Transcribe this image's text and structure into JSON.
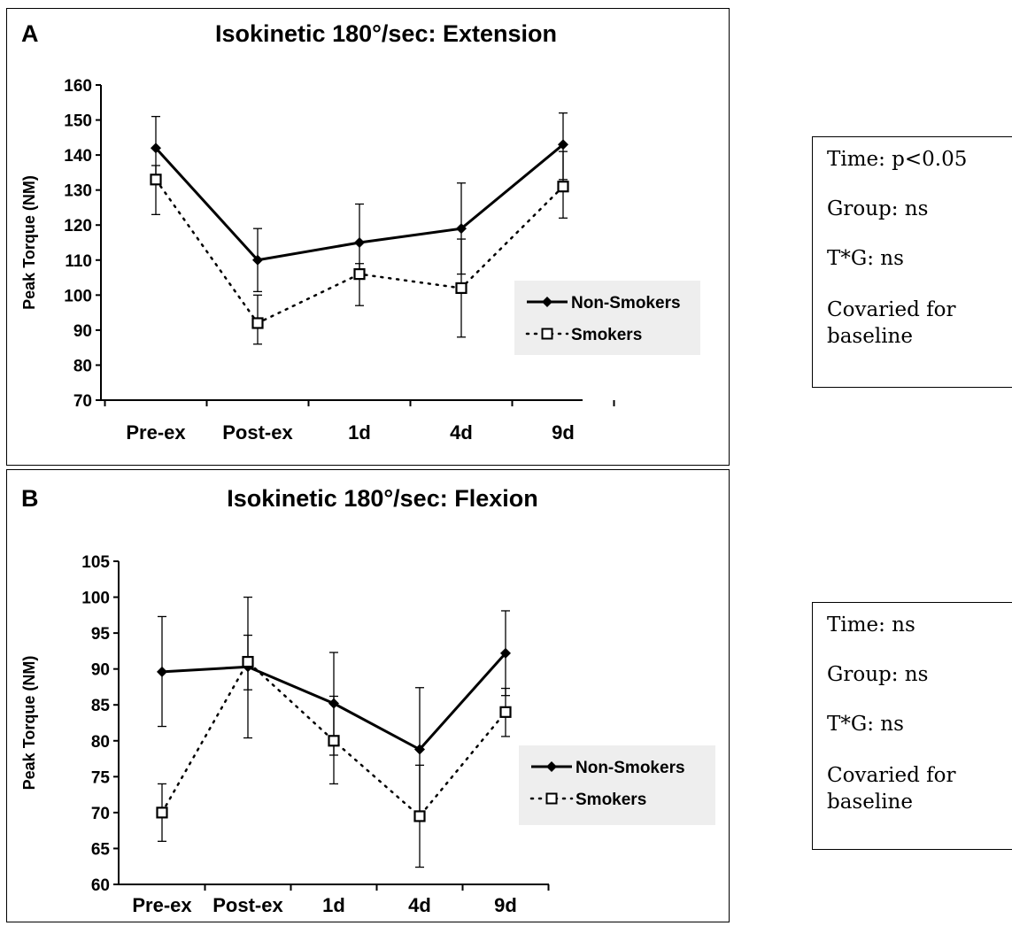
{
  "colors": {
    "axis": "#000000",
    "legend_bg": "#eeeeee",
    "background": "#ffffff"
  },
  "chart_data": [
    {
      "type": "line",
      "panel_label": "A",
      "title": "Isokinetic 180°/sec: Extension",
      "ylabel": "Peak Torque (NM)",
      "xlabel": "",
      "categories": [
        "Pre-ex",
        "Post-ex",
        "1d",
        "4d",
        "9d"
      ],
      "ylim": [
        70,
        160
      ],
      "yticks": [
        70,
        80,
        90,
        100,
        110,
        120,
        130,
        140,
        150,
        160
      ],
      "legend_position": "right",
      "grid": false,
      "series": [
        {
          "name": "Non-Smokers",
          "style": "solid",
          "marker": "filled-diamond",
          "values": [
            142,
            110,
            115,
            119,
            143
          ],
          "err_lower": [
            133,
            101,
            106,
            106,
            133
          ],
          "err_upper": [
            151,
            119,
            126,
            132,
            152
          ]
        },
        {
          "name": "Smokers",
          "style": "dotted",
          "marker": "open-square",
          "values": [
            133,
            92,
            106,
            102,
            131
          ],
          "err_lower": [
            123,
            86,
            97,
            88,
            122
          ],
          "err_upper": [
            137,
            100,
            109,
            116,
            141
          ]
        }
      ],
      "stats": [
        "Time: p<0.05",
        "Group: ns",
        "T*G: ns",
        "Covaried for baseline"
      ]
    },
    {
      "type": "line",
      "panel_label": "B",
      "title": "Isokinetic 180°/sec: Flexion",
      "ylabel": "Peak Torque (NM)",
      "xlabel": "",
      "categories": [
        "Pre-ex",
        "Post-ex",
        "1d",
        "4d",
        "9d"
      ],
      "ylim": [
        60,
        105
      ],
      "yticks": [
        60,
        65,
        70,
        75,
        80,
        85,
        90,
        95,
        100,
        105
      ],
      "legend_position": "right",
      "grid": false,
      "series": [
        {
          "name": "Non-Smokers",
          "style": "solid",
          "marker": "filled-diamond",
          "values": [
            89.6,
            90.3,
            85.2,
            78.8,
            92.2
          ],
          "err_lower": [
            82,
            80.4,
            78,
            69.8,
            86.3
          ],
          "err_upper": [
            97.3,
            100,
            92.3,
            87.4,
            98.1
          ]
        },
        {
          "name": "Smokers",
          "style": "dotted",
          "marker": "open-square",
          "values": [
            70,
            91,
            80,
            69.5,
            84
          ],
          "err_lower": [
            66,
            87.1,
            74,
            62.4,
            80.6
          ],
          "err_upper": [
            74,
            94.7,
            86.2,
            76.6,
            87.3
          ]
        }
      ],
      "stats": [
        "Time: ns",
        "Group: ns",
        "T*G: ns",
        "Covaried for baseline"
      ]
    }
  ]
}
